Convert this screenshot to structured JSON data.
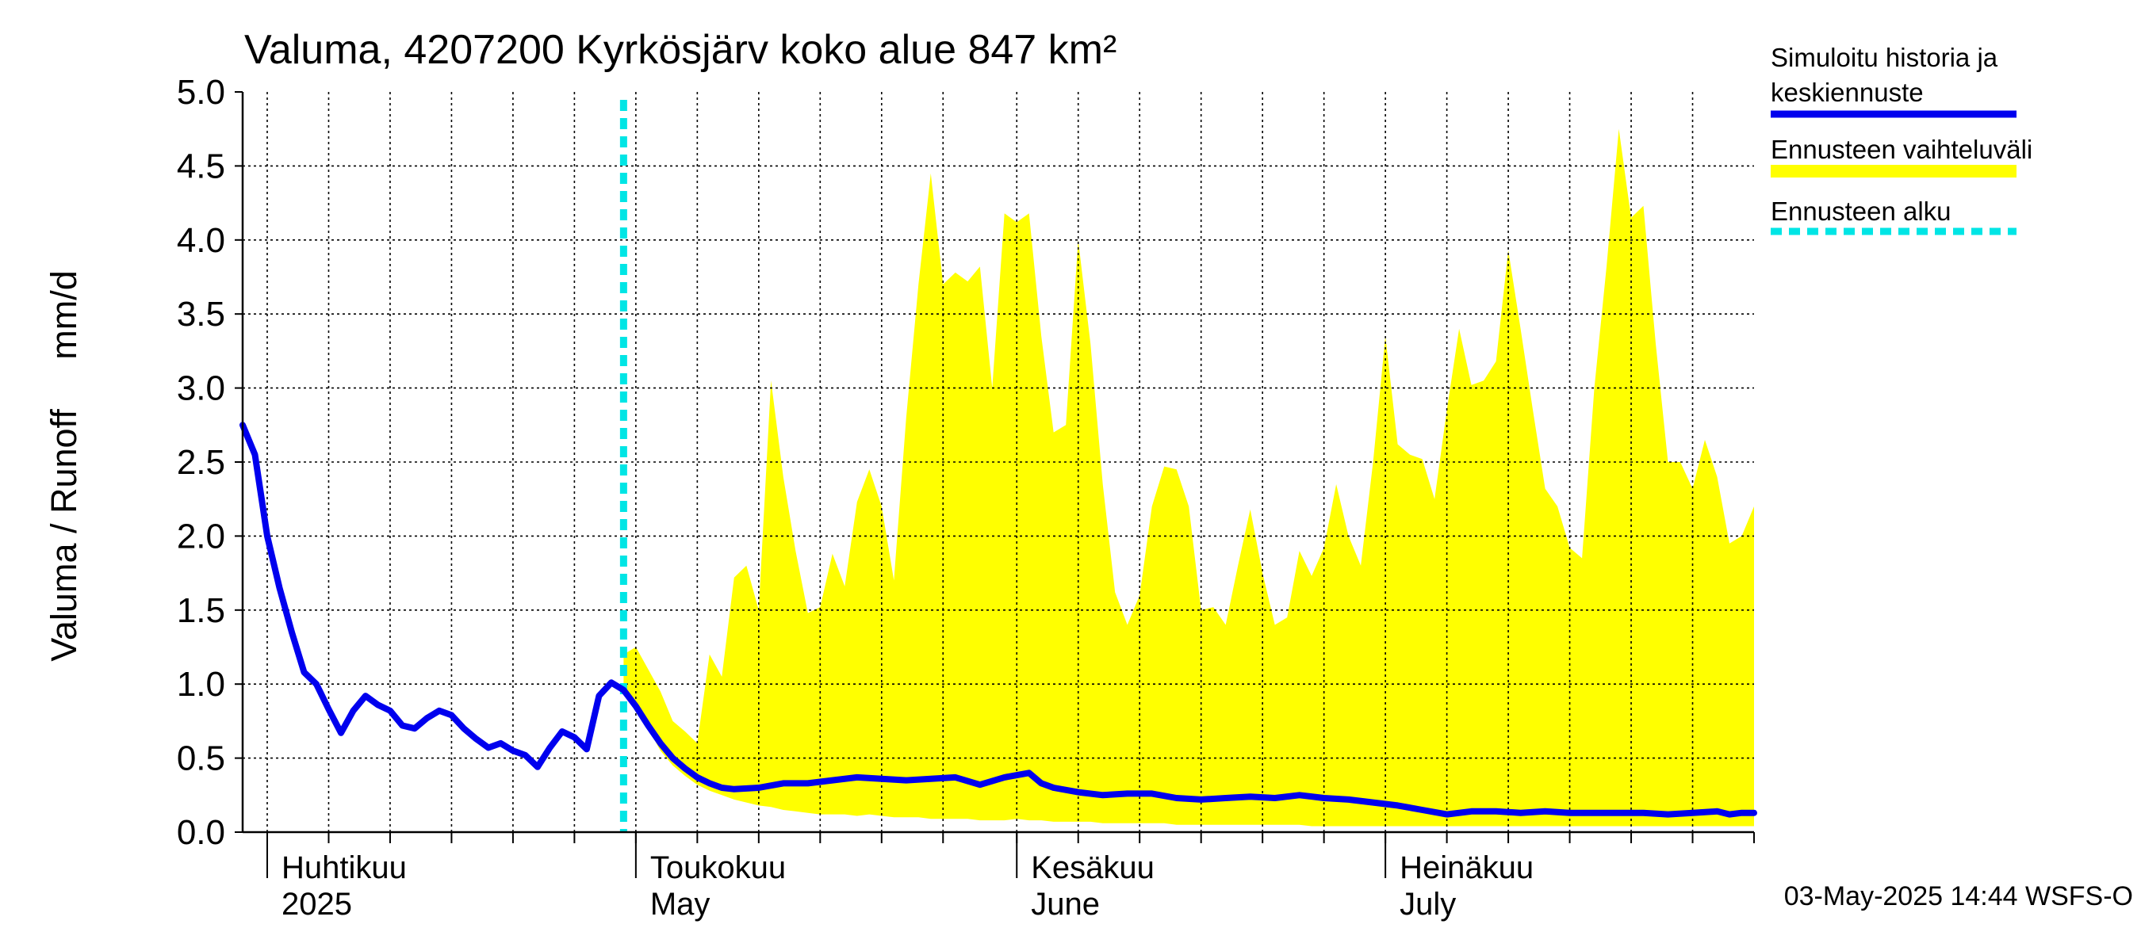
{
  "chart_data": {
    "type": "area",
    "title": "Valuma, 4207200 Kyrkösjärv koko alue 847 km²",
    "ylabel": "Valuma / Runoff     mm/d",
    "ylim": [
      0,
      5.0
    ],
    "yticks": [
      0.0,
      0.5,
      1.0,
      1.5,
      2.0,
      2.5,
      3.0,
      3.5,
      4.0,
      4.5,
      5.0
    ],
    "ytick_labels": [
      "0.0",
      "0.5",
      "1.0",
      "1.5",
      "2.0",
      "2.5",
      "3.0",
      "3.5",
      "4.0",
      "4.5",
      "5.0"
    ],
    "grid": true,
    "x_unit": "day",
    "x_range_days": [
      0,
      123
    ],
    "x_origin": "2025-03-30",
    "month_boundaries": [
      2,
      32,
      63,
      93
    ],
    "minor_ticks": [
      2,
      7,
      12,
      17,
      22,
      27,
      32,
      37,
      42,
      47,
      52,
      57,
      63,
      68,
      73,
      78,
      83,
      88,
      93,
      98,
      103,
      108,
      113,
      118,
      123
    ],
    "month_labels": [
      {
        "day": 2,
        "fi": "Huhtikuu",
        "en": "2025"
      },
      {
        "day": 32,
        "fi": "Toukokuu",
        "en": "May"
      },
      {
        "day": 63,
        "fi": "Kesäkuu",
        "en": "June"
      },
      {
        "day": 93,
        "fi": "Heinäkuu",
        "en": "July"
      }
    ],
    "forecast_start_day": 31,
    "series": [
      {
        "name": "Simuloitu historia ja keskiennuste",
        "color": "#0000ee",
        "x": [
          0,
          1,
          2,
          3,
          4,
          5,
          6,
          7,
          8,
          9,
          10,
          11,
          12,
          13,
          14,
          15,
          16,
          17,
          18,
          19,
          20,
          21,
          22,
          23,
          24,
          25,
          26,
          27,
          28,
          29,
          30,
          31,
          32,
          33,
          34,
          35,
          36,
          37,
          38,
          39,
          40,
          42,
          44,
          46,
          48,
          50,
          52,
          54,
          56,
          58,
          60,
          62,
          64,
          65,
          66,
          68,
          70,
          72,
          74,
          76,
          78,
          80,
          82,
          84,
          86,
          88,
          90,
          92,
          94,
          96,
          98,
          100,
          102,
          104,
          106,
          108,
          110,
          112,
          114,
          116,
          118,
          120,
          121,
          122,
          123
        ],
        "values": [
          2.75,
          2.55,
          2.0,
          1.65,
          1.35,
          1.08,
          1.0,
          0.83,
          0.67,
          0.82,
          0.92,
          0.86,
          0.82,
          0.72,
          0.7,
          0.77,
          0.82,
          0.79,
          0.7,
          0.63,
          0.57,
          0.6,
          0.55,
          0.52,
          0.44,
          0.57,
          0.68,
          0.64,
          0.56,
          0.92,
          1.01,
          0.96,
          0.85,
          0.72,
          0.6,
          0.5,
          0.43,
          0.37,
          0.33,
          0.3,
          0.29,
          0.3,
          0.33,
          0.33,
          0.35,
          0.37,
          0.36,
          0.35,
          0.36,
          0.37,
          0.32,
          0.37,
          0.4,
          0.33,
          0.3,
          0.27,
          0.25,
          0.26,
          0.26,
          0.23,
          0.22,
          0.23,
          0.24,
          0.23,
          0.25,
          0.23,
          0.22,
          0.2,
          0.18,
          0.15,
          0.12,
          0.14,
          0.14,
          0.13,
          0.14,
          0.13,
          0.13,
          0.13,
          0.13,
          0.12,
          0.13,
          0.14,
          0.12,
          0.13,
          0.13
        ]
      }
    ],
    "band": {
      "name": "Ennusteen vaihteluväli",
      "color": "#ffff00",
      "x": [
        31,
        32,
        33,
        34,
        35,
        36,
        37,
        38,
        39,
        40,
        41,
        42,
        43,
        44,
        45,
        46,
        47,
        48,
        49,
        50,
        51,
        52,
        53,
        54,
        55,
        56,
        57,
        58,
        59,
        60,
        61,
        62,
        63,
        64,
        65,
        66,
        67,
        68,
        69,
        70,
        71,
        72,
        73,
        74,
        75,
        76,
        77,
        78,
        79,
        80,
        81,
        82,
        83,
        84,
        85,
        86,
        87,
        88,
        89,
        90,
        91,
        92,
        93,
        94,
        95,
        96,
        97,
        98,
        99,
        100,
        101,
        102,
        103,
        104,
        105,
        106,
        107,
        108,
        109,
        110,
        111,
        112,
        113,
        114,
        115,
        116,
        117,
        118,
        119,
        120,
        121,
        122,
        123
      ],
      "upper": [
        1.2,
        1.25,
        1.1,
        0.95,
        0.75,
        0.68,
        0.6,
        1.2,
        1.05,
        1.72,
        1.8,
        1.5,
        3.05,
        2.4,
        1.9,
        1.48,
        1.52,
        1.88,
        1.66,
        2.23,
        2.45,
        2.2,
        1.7,
        2.8,
        3.7,
        4.45,
        3.7,
        3.78,
        3.72,
        3.82,
        3.0,
        4.18,
        4.12,
        4.18,
        3.35,
        2.7,
        2.75,
        4.0,
        3.3,
        2.35,
        1.62,
        1.4,
        1.6,
        2.2,
        2.47,
        2.45,
        2.2,
        1.5,
        1.52,
        1.4,
        1.8,
        2.18,
        1.75,
        1.4,
        1.45,
        1.9,
        1.73,
        1.92,
        2.35,
        2.0,
        1.8,
        2.5,
        3.35,
        2.62,
        2.55,
        2.52,
        2.25,
        2.85,
        3.4,
        3.02,
        3.05,
        3.18,
        3.93,
        3.4,
        2.85,
        2.32,
        2.2,
        1.92,
        1.85,
        3.0,
        3.82,
        4.75,
        4.15,
        4.23,
        3.3,
        2.5,
        2.5,
        2.32,
        2.65,
        2.4,
        1.95,
        2.0,
        2.2
      ],
      "lower": [
        0.95,
        0.88,
        0.7,
        0.55,
        0.45,
        0.38,
        0.32,
        0.28,
        0.25,
        0.22,
        0.2,
        0.18,
        0.17,
        0.15,
        0.14,
        0.13,
        0.12,
        0.12,
        0.12,
        0.11,
        0.12,
        0.11,
        0.1,
        0.1,
        0.1,
        0.09,
        0.09,
        0.09,
        0.09,
        0.08,
        0.08,
        0.08,
        0.09,
        0.08,
        0.08,
        0.07,
        0.07,
        0.07,
        0.07,
        0.06,
        0.06,
        0.06,
        0.06,
        0.06,
        0.06,
        0.05,
        0.05,
        0.05,
        0.05,
        0.05,
        0.05,
        0.05,
        0.05,
        0.05,
        0.05,
        0.05,
        0.04,
        0.04,
        0.04,
        0.04,
        0.04,
        0.04,
        0.04,
        0.04,
        0.04,
        0.04,
        0.04,
        0.04,
        0.04,
        0.04,
        0.04,
        0.04,
        0.04,
        0.04,
        0.04,
        0.04,
        0.04,
        0.04,
        0.04,
        0.04,
        0.04,
        0.04,
        0.04,
        0.04,
        0.04,
        0.04,
        0.04,
        0.04,
        0.04,
        0.04,
        0.04,
        0.04,
        0.04
      ]
    },
    "legend": {
      "placement": "right",
      "items": [
        {
          "label_lines": [
            "Simuloitu historia ja",
            "keskiennuste"
          ],
          "color": "#0000ee",
          "style": "solid"
        },
        {
          "label_lines": [
            "Ennusteen vaihteluväli"
          ],
          "color": "#ffff00",
          "style": "band"
        },
        {
          "label_lines": [
            "Ennusteen alku"
          ],
          "color": "#00e5e5",
          "style": "dashed"
        }
      ]
    },
    "footer": "03-May-2025 14:44 WSFS-O"
  }
}
